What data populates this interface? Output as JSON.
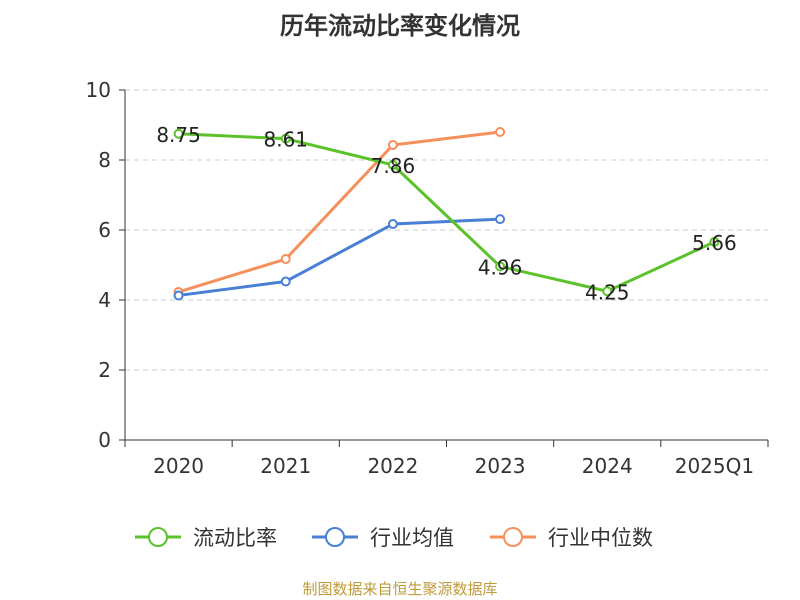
{
  "chart_data": {
    "type": "line",
    "title": "历年流动比率变化情况",
    "categories": [
      "2020",
      "2021",
      "2022",
      "2023",
      "2024",
      "2025Q1"
    ],
    "ylim": [
      0,
      10
    ],
    "yticks": [
      0,
      2,
      4,
      6,
      8,
      10
    ],
    "grid": true,
    "legend_position": "bottom",
    "series": [
      {
        "name": "流动比率",
        "color": "#5bc22a",
        "values": [
          8.75,
          8.61,
          7.86,
          4.96,
          4.25,
          5.66
        ],
        "labels": [
          "8.75",
          "8.61",
          "7.86",
          "4.96",
          "4.25",
          "5.66"
        ]
      },
      {
        "name": "行业均值",
        "color": "#4a7fd6",
        "values": [
          4.13,
          4.53,
          6.17,
          6.31,
          null,
          null
        ]
      },
      {
        "name": "行业中位数",
        "color": "#f5905c",
        "values": [
          4.23,
          5.17,
          8.43,
          8.8,
          null,
          null
        ]
      }
    ]
  },
  "footer": {
    "text": "制图数据来自恒生聚源数据库",
    "color": "#c09a3a"
  }
}
